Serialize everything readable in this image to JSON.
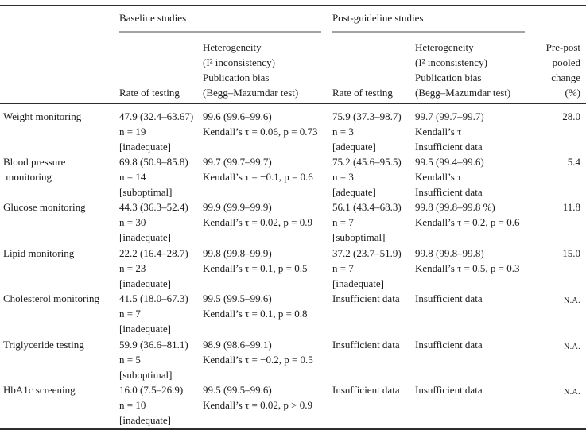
{
  "table": {
    "spanners": {
      "baseline": "Baseline studies",
      "post": "Post-guideline studies"
    },
    "headers": {
      "rate": "Rate of testing",
      "heterogeneity": "Heterogeneity\n(I² inconsistency)\nPublication bias\n(Begg–Mazumdar test)",
      "change": "Pre-post\npooled\nchange\n(%)"
    },
    "rows": [
      {
        "label": "Weight monitoring",
        "b_rate": "47.9 (32.4–63.67)\nn = 19\n[inadequate]",
        "b_het": "99.6 (99.6–99.6)\nKendall’s τ = 0.06, p = 0.73",
        "p_rate": "75.9 (37.3–98.7)\nn = 3\n[adequate]",
        "p_het": "99.7 (99.7–99.7)\nKendall’s τ\nInsufficient data",
        "change": "28.0"
      },
      {
        "label": "Blood pressure\n monitoring",
        "b_rate": "69.8 (50.9–85.8)\nn = 14\n[suboptimal]",
        "b_het": "99.7 (99.7–99.7)\nKendall’s τ = −0.1, p = 0.6",
        "p_rate": "75.2 (45.6–95.5)\nn = 3\n[adequate]",
        "p_het": "99.5 (99.4–99.6)\nKendall’s τ\nInsufficient data",
        "change": "5.4"
      },
      {
        "label": "Glucose monitoring",
        "b_rate": "44.3 (36.3–52.4)\nn = 30\n[inadequate]",
        "b_het": "99.9 (99.9–99.9)\nKendall’s τ = 0.02, p = 0.9",
        "p_rate": "56.1 (43.4–68.3)\nn = 7\n[suboptimal]",
        "p_het": "99.8 (99.8–99.8 %)\nKendall’s τ = 0.2, p = 0.6",
        "change": "11.8"
      },
      {
        "label": "Lipid monitoring",
        "b_rate": "22.2 (16.4–28.7)\nn = 23\n[inadequate]",
        "b_het": "99.8 (99.8–99.9)\nKendall’s τ = 0.1, p = 0.5",
        "p_rate": "37.2 (23.7–51.9)\nn = 7\n[inadequate]",
        "p_het": "99.8 (99.8–99.8)\nKendall’s τ = 0.5, p = 0.3",
        "change": "15.0"
      },
      {
        "label": "Cholesterol monitoring",
        "b_rate": "41.5 (18.0–67.3)\nn = 7\n[inadequate]",
        "b_het": "99.5 (99.5–99.6)\nKendall’s τ = 0.1, p = 0.8",
        "p_rate": "Insufficient data",
        "p_het": "Insufficient data",
        "change": "N.A."
      },
      {
        "label": "Triglyceride testing",
        "b_rate": "59.9 (36.6–81.1)\nn = 5\n[suboptimal]",
        "b_het": "98.9 (98.6–99.1)\nKendall’s τ = −0.2, p = 0.5",
        "p_rate": "Insufficient data",
        "p_het": "Insufficient data",
        "change": "N.A."
      },
      {
        "label": "HbA1c screening",
        "b_rate": "16.0 (7.5–26.9)\nn = 10\n[inadequate]",
        "b_het": "99.5 (99.5–99.6)\nKendall’s τ = 0.02, p > 0.9",
        "p_rate": "Insufficient data",
        "p_het": "Insufficient data",
        "change": "N.A."
      }
    ]
  }
}
